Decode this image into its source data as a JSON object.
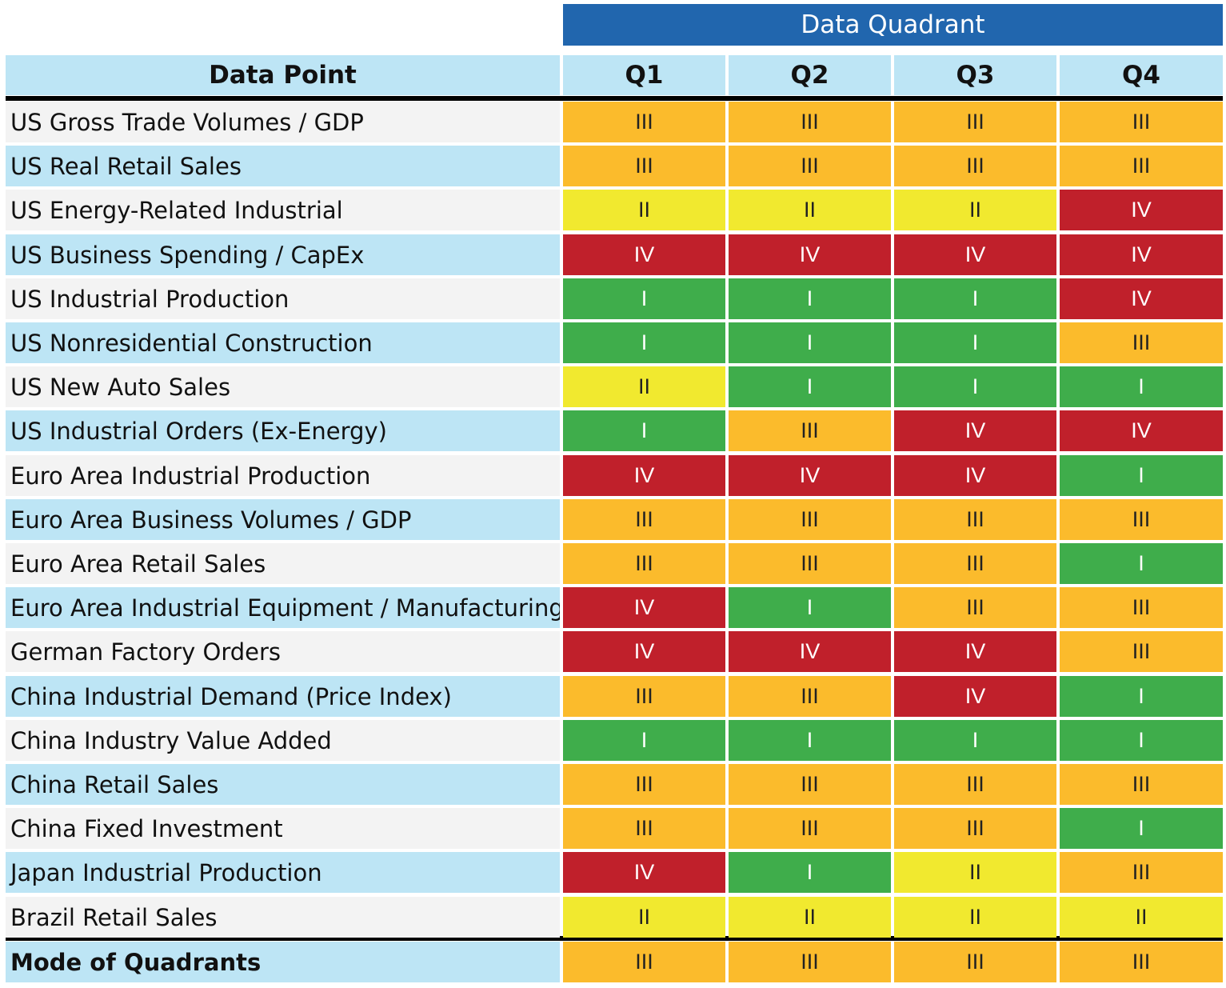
{
  "chart_data": {
    "type": "table",
    "group_header": "Data Quadrant",
    "columns": [
      "Data Point",
      "Q1",
      "Q2",
      "Q3",
      "Q4"
    ],
    "rows": [
      {
        "label": "US Gross Trade Volumes / GDP",
        "values": [
          "III",
          "III",
          "III",
          "III"
        ]
      },
      {
        "label": "US Real Retail Sales",
        "values": [
          "III",
          "III",
          "III",
          "III"
        ]
      },
      {
        "label": "US Energy-Related Industrial",
        "values": [
          "II",
          "II",
          "II",
          "IV"
        ]
      },
      {
        "label": "US Business Spending / CapEx",
        "values": [
          "IV",
          "IV",
          "IV",
          "IV"
        ]
      },
      {
        "label": "US Industrial Production",
        "values": [
          "I",
          "I",
          "I",
          "IV"
        ]
      },
      {
        "label": "US Nonresidential Construction",
        "values": [
          "I",
          "I",
          "I",
          "III"
        ]
      },
      {
        "label": "US New Auto Sales",
        "values": [
          "II",
          "I",
          "I",
          "I"
        ]
      },
      {
        "label": "US Industrial Orders (Ex-Energy)",
        "values": [
          "I",
          "III",
          "IV",
          "IV"
        ]
      },
      {
        "label": "Euro Area Industrial Production",
        "values": [
          "IV",
          "IV",
          "IV",
          "I"
        ]
      },
      {
        "label": "Euro Area Business Volumes / GDP",
        "values": [
          "III",
          "III",
          "III",
          "III"
        ]
      },
      {
        "label": "Euro Area Retail Sales",
        "values": [
          "III",
          "III",
          "III",
          "I"
        ]
      },
      {
        "label": "Euro Area Industrial Equipment / Manufacturing",
        "values": [
          "IV",
          "I",
          "III",
          "III"
        ]
      },
      {
        "label": "German Factory Orders",
        "values": [
          "IV",
          "IV",
          "IV",
          "III"
        ]
      },
      {
        "label": "China Industrial Demand (Price Index)",
        "values": [
          "III",
          "III",
          "IV",
          "I"
        ]
      },
      {
        "label": "China Industry Value Added",
        "values": [
          "I",
          "I",
          "I",
          "I"
        ]
      },
      {
        "label": "China Retail Sales",
        "values": [
          "III",
          "III",
          "III",
          "III"
        ]
      },
      {
        "label": "China Fixed Investment",
        "values": [
          "III",
          "III",
          "III",
          "I"
        ]
      },
      {
        "label": "Japan Industrial Production",
        "values": [
          "IV",
          "I",
          "II",
          "III"
        ]
      },
      {
        "label": "Brazil Retail Sales",
        "values": [
          "II",
          "II",
          "II",
          "II"
        ]
      }
    ],
    "summary": {
      "label": "Mode of Quadrants",
      "values": [
        "III",
        "III",
        "III",
        "III"
      ]
    }
  },
  "colors": {
    "I": "#3fad4b",
    "II": "#f1e92f",
    "III": "#fbbb2c",
    "IV": "#c0202b",
    "header_bg": "#bde5f5",
    "banner_bg": "#2166ae",
    "label_even": "#f3f3f3",
    "label_odd": "#bde5f5"
  }
}
